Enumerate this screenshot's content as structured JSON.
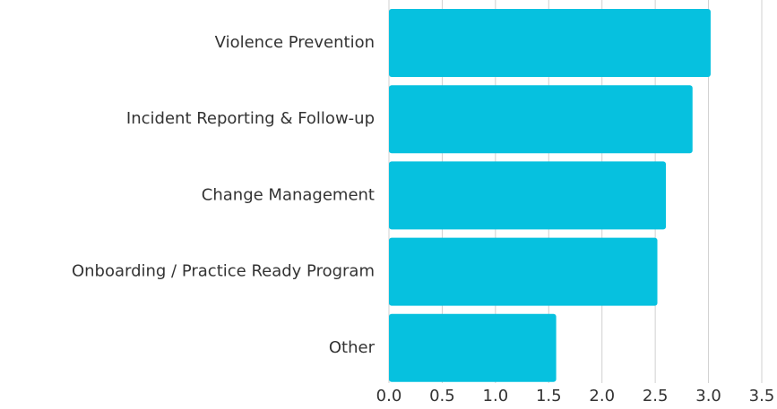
{
  "chart_data": {
    "type": "bar",
    "orientation": "horizontal",
    "categories": [
      "Violence Prevention",
      "Incident Reporting & Follow-up",
      "Change Management",
      "Onboarding / Practice Ready Program",
      "Other"
    ],
    "values": [
      3.02,
      2.85,
      2.6,
      2.52,
      1.57
    ],
    "color": "#06c1df",
    "xlim": [
      0,
      3.5
    ],
    "xticks": [
      {
        "value": 0,
        "label": "0.0"
      },
      0.5,
      {
        "value": 1,
        "label": "1.0"
      },
      1.5,
      {
        "value": 2,
        "label": "2.0"
      },
      2.5,
      {
        "value": 3,
        "label": "3.0"
      },
      3.5
    ],
    "grid": true
  }
}
